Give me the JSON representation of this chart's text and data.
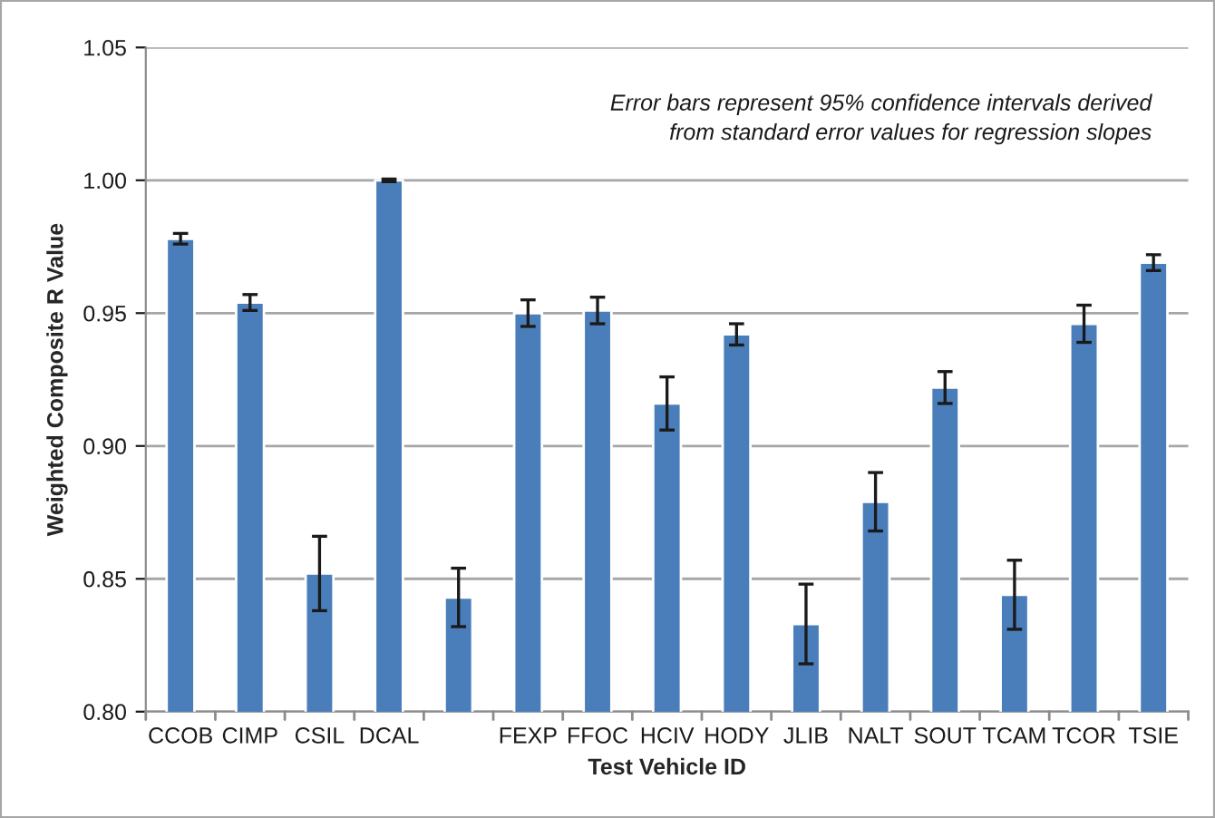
{
  "chart_data": {
    "type": "bar",
    "xlabel": "Test Vehicle ID",
    "ylabel": "Weighted Composite R Value",
    "categories": [
      "CCOB",
      "CIMP",
      "CSIL",
      "DCAL",
      null,
      "FEXP",
      "FFOC",
      "HCIV",
      "HODY",
      "JLIB",
      "NALT",
      "SOUT",
      "TCAM",
      "TCOR",
      "TSIE"
    ],
    "values": [
      0.978,
      0.954,
      0.852,
      1.0,
      0.843,
      0.95,
      0.951,
      0.916,
      0.942,
      0.833,
      0.879,
      0.922,
      0.844,
      0.946,
      0.969
    ],
    "errors": [
      0.002,
      0.003,
      0.014,
      0.0005,
      0.011,
      0.005,
      0.005,
      0.01,
      0.004,
      0.015,
      0.011,
      0.006,
      0.013,
      0.007,
      0.003
    ],
    "color": "#4a7ebb",
    "ylim": [
      0.8,
      1.05
    ],
    "yticks": [
      {
        "value": 0.8,
        "label": "0.80"
      },
      {
        "value": 0.85,
        "label": "0.85"
      },
      {
        "value": 0.9,
        "label": "0.90"
      },
      {
        "value": 0.95,
        "label": "0.95"
      },
      {
        "value": 1.0,
        "label": "1.00"
      },
      {
        "value": 1.05,
        "label": "1.05"
      }
    ],
    "grid": "y",
    "legend": false,
    "annotations": [
      "Error bars represent 95% confidence intervals derived\nfrom standard error values for regression slopes"
    ]
  }
}
